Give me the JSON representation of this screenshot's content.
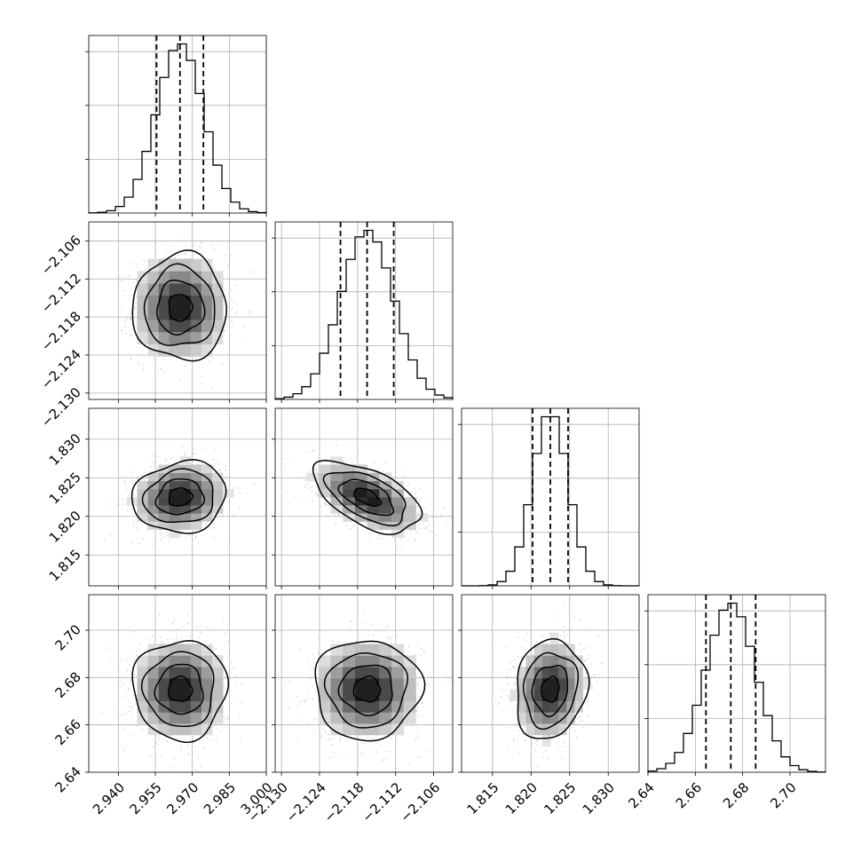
{
  "chart_data": {
    "type": "corner",
    "parameters": [
      {
        "id": "p0",
        "mean": 2.965,
        "sd": 0.0095,
        "quantiles": [
          2.9555,
          2.965,
          2.9745
        ],
        "range": [
          2.928,
          3.0
        ],
        "ticks": [
          2.94,
          2.955,
          2.97,
          2.985,
          3.0
        ],
        "tick_labels": [
          "2.940",
          "2.955",
          "2.970",
          "2.985",
          "3.000"
        ]
      },
      {
        "id": "p1",
        "mean": -2.1165,
        "sd": 0.0042,
        "quantiles": [
          -2.1207,
          -2.1165,
          -2.1123
        ],
        "range": [
          -2.131,
          -2.103
        ],
        "ticks": [
          -2.13,
          -2.124,
          -2.118,
          -2.112,
          -2.106
        ],
        "tick_labels": [
          "−2.130",
          "−2.124",
          "−2.118",
          "−2.112",
          "−2.106"
        ]
      },
      {
        "id": "p2",
        "mean": 1.8225,
        "sd": 0.0023,
        "quantiles": [
          1.8202,
          1.8225,
          1.8248
        ],
        "range": [
          1.811,
          1.834
        ],
        "ticks": [
          1.815,
          1.82,
          1.825,
          1.83
        ],
        "tick_labels": [
          "1.815",
          "1.820",
          "1.825",
          "1.830"
        ]
      },
      {
        "id": "p3",
        "mean": 2.675,
        "sd": 0.0105,
        "quantiles": [
          2.6645,
          2.675,
          2.6855
        ],
        "range": [
          2.64,
          2.715
        ],
        "ticks": [
          2.64,
          2.66,
          2.68,
          2.7
        ],
        "tick_labels": [
          "2.64",
          "2.66",
          "2.68",
          "2.70"
        ]
      }
    ],
    "correlations": [
      [
        1.0,
        0.0,
        0.1,
        0.0
      ],
      [
        0.0,
        1.0,
        -0.55,
        0.0
      ],
      [
        0.1,
        -0.55,
        1.0,
        0.12
      ],
      [
        0.0,
        0.0,
        0.12,
        1.0
      ]
    ],
    "histogram_bins": 20,
    "contour_levels": [
      0.5,
      1.0,
      1.5,
      2.0
    ],
    "grid": true
  }
}
